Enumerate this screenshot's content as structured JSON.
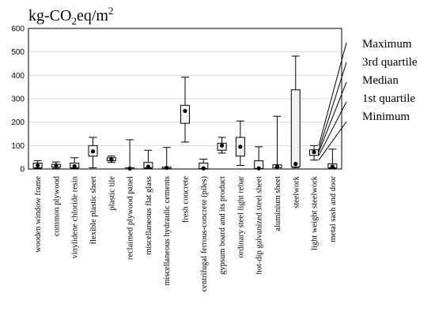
{
  "chart_data": {
    "type": "boxplot",
    "title": "",
    "ylabel": "",
    "unit_label": {
      "base": "kg-CO",
      "sub": "2",
      "mid": "eq/m",
      "sup": "2"
    },
    "ylim": [
      0,
      600
    ],
    "yticks": [
      "0",
      "100",
      "200",
      "300",
      "400",
      "500",
      "600"
    ],
    "grid": "horizontal",
    "colors": {
      "box_fill": "#f2f2f2",
      "stroke": "#000000",
      "grid": "#d9d9d9"
    },
    "legend": {
      "placement": "right",
      "entries": [
        "Maximum",
        "3rd quartile",
        "Median",
        "1st quartile",
        "Minimum"
      ]
    },
    "categories": [
      "wooden window frame",
      "common plywood",
      "vinylidene chloride resin",
      "flexible plastic sheet",
      "plastic tile",
      "reclaimed plywood panel",
      "miscellaneous flat glass",
      "miscellaneous hydraulic cements",
      "fresh concrete",
      "centrifugal ferrous-concrete (piles)",
      "gypsum board and its product",
      "ordinary steel light rebar",
      "hot-dip galvanized steel sheet",
      "aluminium sheet",
      "steelwork",
      "light weight steelwork",
      "metal sash and door"
    ],
    "boxes": [
      {
        "min": 2,
        "q1": 5,
        "median": 15,
        "q3": 25,
        "max": 35
      },
      {
        "min": 3,
        "q1": 8,
        "median": 15,
        "q3": 20,
        "max": 30
      },
      {
        "min": 2,
        "q1": 5,
        "median": 12,
        "q3": 25,
        "max": 48
      },
      {
        "min": 5,
        "q1": 55,
        "median": 75,
        "q3": 100,
        "max": 135
      },
      {
        "min": 28,
        "q1": 35,
        "median": 40,
        "q3": 48,
        "max": 55
      },
      {
        "min": 0,
        "q1": 0,
        "median": 2,
        "q3": 5,
        "max": 125
      },
      {
        "min": 2,
        "q1": 5,
        "median": 10,
        "q3": 28,
        "max": 80
      },
      {
        "min": 0,
        "q1": 2,
        "median": 5,
        "q3": 8,
        "max": 92
      },
      {
        "min": 115,
        "q1": 195,
        "median": 248,
        "q3": 272,
        "max": 392
      },
      {
        "min": 0,
        "q1": 2,
        "median": 3,
        "q3": 25,
        "max": 42
      },
      {
        "min": 68,
        "q1": 80,
        "median": 100,
        "q3": 110,
        "max": 135
      },
      {
        "min": 15,
        "q1": 55,
        "median": 95,
        "q3": 135,
        "max": 205
      },
      {
        "min": 0,
        "q1": 2,
        "median": 3,
        "q3": 35,
        "max": 95
      },
      {
        "min": 0,
        "q1": 5,
        "median": 10,
        "q3": 18,
        "max": 225
      },
      {
        "min": 5,
        "q1": 10,
        "median": 22,
        "q3": 338,
        "max": 482
      },
      {
        "min": 38,
        "q1": 58,
        "median": 72,
        "q3": 82,
        "max": 100
      },
      {
        "min": 2,
        "q1": 5,
        "median": 10,
        "q3": 22,
        "max": 85
      }
    ]
  }
}
